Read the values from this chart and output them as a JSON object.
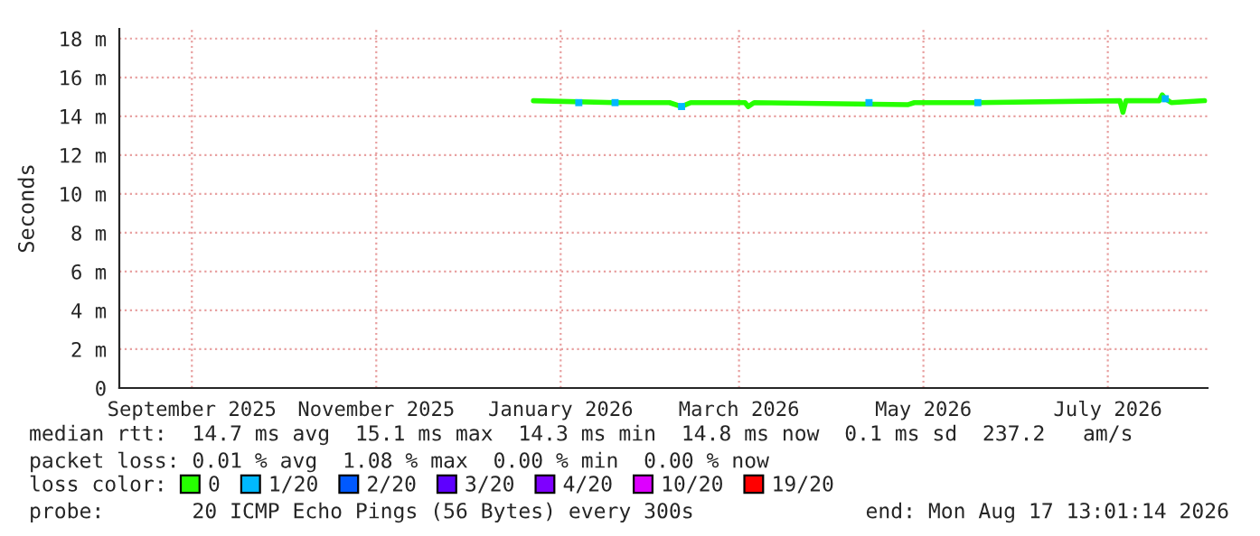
{
  "chart_data": {
    "type": "line",
    "ylabel": "Seconds",
    "xlim": [
      "2025-08-08",
      "2026-08-03"
    ],
    "xticks": [
      {
        "value": "2025-09-01",
        "label": "September 2025"
      },
      {
        "value": "2025-11-01",
        "label": "November 2025"
      },
      {
        "value": "2026-01-01",
        "label": "January 2026"
      },
      {
        "value": "2026-03-01",
        "label": "March 2026"
      },
      {
        "value": "2026-05-01",
        "label": "May 2026"
      },
      {
        "value": "2026-07-01",
        "label": "July 2026"
      }
    ],
    "ylim": [
      0,
      18.5
    ],
    "yticks": [
      0,
      {
        "value": 2,
        "label": "2 m"
      },
      {
        "value": 4,
        "label": "4 m"
      },
      {
        "value": 6,
        "label": "6 m"
      },
      {
        "value": 8,
        "label": "8 m"
      },
      {
        "value": 10,
        "label": "10 m"
      },
      {
        "value": 12,
        "label": "12 m"
      },
      {
        "value": 14,
        "label": "14 m"
      },
      {
        "value": 16,
        "label": "16 m"
      },
      {
        "value": 18,
        "label": "18 m"
      }
    ],
    "grid": true,
    "legend": "bottom",
    "legend_title": "loss color:",
    "series": [
      {
        "name": "0",
        "color": "#26ff00",
        "x": [
          "2025-12-23",
          "2026-01-19",
          "2026-02-06",
          "2026-02-10",
          "2026-02-13",
          "2026-03-03",
          "2026-03-04",
          "2026-03-06",
          "2026-04-26",
          "2026-04-28",
          "2026-05-19",
          "2026-07-05",
          "2026-07-06",
          "2026-07-07",
          "2026-07-18",
          "2026-07-19",
          "2026-07-20",
          "2026-07-22",
          "2026-08-02"
        ],
        "values": [
          14.8,
          14.7,
          14.7,
          14.5,
          14.7,
          14.7,
          14.5,
          14.7,
          14.6,
          14.7,
          14.7,
          14.8,
          14.2,
          14.8,
          14.8,
          15.1,
          14.9,
          14.7,
          14.8
        ]
      },
      {
        "name": "1/20",
        "color": "#00b8ff",
        "type": "scatter",
        "marker": "square",
        "x": [
          "2026-01-07",
          "2026-01-19",
          "2026-02-10",
          "2026-04-13",
          "2026-05-19",
          "2026-07-20"
        ],
        "values": [
          14.7,
          14.7,
          14.5,
          14.7,
          14.7,
          14.9
        ]
      },
      {
        "name": "2/20",
        "color": "#0059ff",
        "type": "scatter"
      },
      {
        "name": "3/20",
        "color": "#5e00ff",
        "type": "scatter"
      },
      {
        "name": "4/20",
        "color": "#7e00ff",
        "type": "scatter"
      },
      {
        "name": "10/20",
        "color": "#dd00ff",
        "type": "scatter"
      },
      {
        "name": "19/20",
        "color": "#ff0000",
        "type": "scatter"
      }
    ],
    "annotations": [
      "median rtt:  14.7 ms avg  15.1 ms max  14.3 ms min  14.8 ms now  0.1 ms sd  237.2   am/s",
      "packet loss: 0.01 % avg  1.08 % max  0.00 % min  0.00 % now",
      "probe:       20 ICMP Echo Pings (56 Bytes) every 300s",
      "end: Mon Aug 17 13:01:14 2026"
    ]
  }
}
